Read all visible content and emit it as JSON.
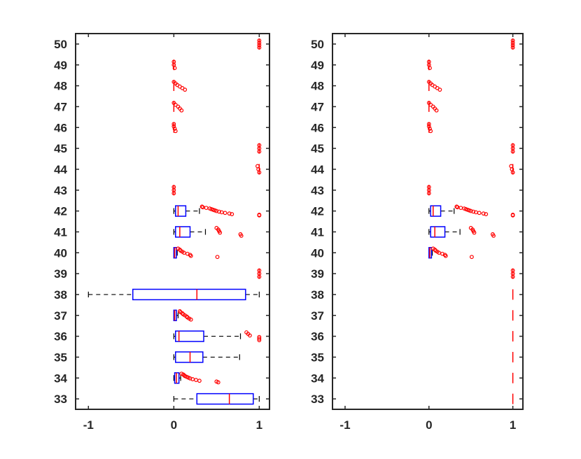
{
  "chart_data": [
    {
      "type": "boxplot",
      "orientation": "horizontal",
      "title": "",
      "xlabel": "",
      "ylabel": "",
      "xlim": [
        -1.15,
        1.12
      ],
      "ylim": [
        32.5,
        50.5
      ],
      "xticks": [
        -1,
        0,
        1
      ],
      "xtick_labels": [
        "-1",
        "0",
        "1"
      ],
      "yticks": [
        33,
        34,
        35,
        36,
        37,
        38,
        39,
        40,
        41,
        42,
        43,
        44,
        45,
        46,
        47,
        48,
        49,
        50
      ],
      "ytick_labels": [
        "33",
        "34",
        "35",
        "36",
        "37",
        "38",
        "39",
        "40",
        "41",
        "42",
        "43",
        "44",
        "45",
        "46",
        "47",
        "48",
        "49",
        "50"
      ],
      "grid": false,
      "colors": {
        "box": "#0000ff",
        "median": "#ff0000",
        "whisker": "#000000",
        "outlier": "#ff0000"
      },
      "boxes": [
        {
          "category": "33",
          "whisker_low": 0.0,
          "q1": 0.27,
          "median": 0.65,
          "q3": 0.93,
          "whisker_high": 1.0,
          "outliers": []
        },
        {
          "category": "34",
          "whisker_low": 0.0,
          "q1": 0.01,
          "median": 0.03,
          "q3": 0.06,
          "whisker_high": 0.08,
          "outliers": [
            0.09,
            0.11,
            0.12,
            0.13,
            0.15,
            0.17,
            0.19,
            0.22,
            0.26,
            0.3,
            0.5,
            0.52
          ]
        },
        {
          "category": "35",
          "whisker_low": 0.0,
          "q1": 0.02,
          "median": 0.19,
          "q3": 0.34,
          "whisker_high": 0.77,
          "outliers": []
        },
        {
          "category": "36",
          "whisker_low": 0.0,
          "q1": 0.02,
          "median": 0.06,
          "q3": 0.35,
          "whisker_high": 0.78,
          "outliers": [
            0.85,
            0.87,
            0.89,
            1.0,
            1.0,
            1.0
          ]
        },
        {
          "category": "37",
          "whisker_low": 0.0,
          "q1": 0.0,
          "median": 0.01,
          "q3": 0.03,
          "whisker_high": 0.05,
          "outliers": [
            0.07,
            0.08,
            0.1,
            0.11,
            0.13,
            0.15,
            0.16,
            0.18,
            0.2
          ]
        },
        {
          "category": "38",
          "whisker_low": -1.0,
          "q1": -0.48,
          "median": 0.27,
          "q3": 0.84,
          "whisker_high": 1.0,
          "outliers": []
        },
        {
          "category": "39",
          "whisker_low": 1.0,
          "q1": 1.0,
          "median": 1.0,
          "q3": 1.0,
          "whisker_high": 1.0,
          "outliers": [
            1.0,
            1.0,
            1.0
          ]
        },
        {
          "category": "40",
          "whisker_low": 0.0,
          "q1": 0.0,
          "median": 0.01,
          "q3": 0.03,
          "whisker_high": 0.04,
          "outliers": [
            0.05,
            0.07,
            0.08,
            0.1,
            0.12,
            0.16,
            0.19,
            0.2,
            0.51
          ]
        },
        {
          "category": "41",
          "whisker_low": 0.0,
          "q1": 0.02,
          "median": 0.07,
          "q3": 0.19,
          "whisker_high": 0.37,
          "outliers": [
            0.5,
            0.52,
            0.53,
            0.54,
            0.78,
            0.79
          ]
        },
        {
          "category": "42",
          "whisker_low": 0.0,
          "q1": 0.02,
          "median": 0.05,
          "q3": 0.14,
          "whisker_high": 0.3,
          "outliers": [
            0.33,
            0.34,
            0.38,
            0.42,
            0.44,
            0.46,
            0.48,
            0.5,
            0.53,
            0.56,
            0.6,
            0.65,
            0.68,
            1.0,
            1.0
          ]
        },
        {
          "category": "43",
          "whisker_low": 0.0,
          "q1": 0.0,
          "median": 0.0,
          "q3": 0.0,
          "whisker_high": 0.0,
          "outliers": [
            0.0,
            0.0,
            0.0
          ]
        },
        {
          "category": "44",
          "whisker_low": 1.0,
          "q1": 1.0,
          "median": 1.0,
          "q3": 1.0,
          "whisker_high": 1.0,
          "outliers": [
            0.98,
            0.99,
            1.0
          ]
        },
        {
          "category": "45",
          "whisker_low": 1.0,
          "q1": 1.0,
          "median": 1.0,
          "q3": 1.0,
          "whisker_high": 1.0,
          "outliers": [
            1.0,
            1.0,
            1.0
          ]
        },
        {
          "category": "46",
          "whisker_low": 0.0,
          "q1": 0.0,
          "median": 0.0,
          "q3": 0.0,
          "whisker_high": 0.0,
          "outliers": [
            0.0,
            0.0,
            0.01,
            0.02
          ]
        },
        {
          "category": "47",
          "whisker_low": 0.0,
          "q1": 0.0,
          "median": 0.0,
          "q3": 0.0,
          "whisker_high": 0.0,
          "outliers": [
            0.0,
            0.02,
            0.05,
            0.07,
            0.09
          ]
        },
        {
          "category": "48",
          "whisker_low": 0.0,
          "q1": 0.0,
          "median": 0.0,
          "q3": 0.0,
          "whisker_high": 0.0,
          "outliers": [
            0.0,
            0.02,
            0.04,
            0.07,
            0.1,
            0.13
          ]
        },
        {
          "category": "49",
          "whisker_low": 0.0,
          "q1": 0.0,
          "median": 0.0,
          "q3": 0.0,
          "whisker_high": 0.0,
          "outliers": [
            0.0,
            0.0,
            0.01
          ]
        },
        {
          "category": "50",
          "whisker_low": 1.0,
          "q1": 1.0,
          "median": 1.0,
          "q3": 1.0,
          "whisker_high": 1.0,
          "outliers": [
            1.0,
            1.0,
            1.0,
            1.0
          ]
        }
      ]
    },
    {
      "type": "boxplot",
      "orientation": "horizontal",
      "title": "",
      "xlabel": "",
      "ylabel": "",
      "xlim": [
        -1.15,
        1.12
      ],
      "ylim": [
        32.5,
        50.5
      ],
      "xticks": [
        -1,
        0,
        1
      ],
      "xtick_labels": [
        "-1",
        "0",
        "1"
      ],
      "yticks": [
        33,
        34,
        35,
        36,
        37,
        38,
        39,
        40,
        41,
        42,
        43,
        44,
        45,
        46,
        47,
        48,
        49,
        50
      ],
      "ytick_labels": [
        "33",
        "34",
        "35",
        "36",
        "37",
        "38",
        "39",
        "40",
        "41",
        "42",
        "43",
        "44",
        "45",
        "46",
        "47",
        "48",
        "49",
        "50"
      ],
      "grid": false,
      "colors": {
        "box": "#0000ff",
        "median": "#ff0000",
        "whisker": "#000000",
        "outlier": "#ff0000"
      },
      "boxes": [
        {
          "category": "33",
          "whisker_low": 1.0,
          "q1": 1.0,
          "median": 1.0,
          "q3": 1.0,
          "whisker_high": 1.0,
          "outliers": []
        },
        {
          "category": "34",
          "whisker_low": 1.0,
          "q1": 1.0,
          "median": 1.0,
          "q3": 1.0,
          "whisker_high": 1.0,
          "outliers": []
        },
        {
          "category": "35",
          "whisker_low": 1.0,
          "q1": 1.0,
          "median": 1.0,
          "q3": 1.0,
          "whisker_high": 1.0,
          "outliers": []
        },
        {
          "category": "36",
          "whisker_low": 1.0,
          "q1": 1.0,
          "median": 1.0,
          "q3": 1.0,
          "whisker_high": 1.0,
          "outliers": []
        },
        {
          "category": "37",
          "whisker_low": 1.0,
          "q1": 1.0,
          "median": 1.0,
          "q3": 1.0,
          "whisker_high": 1.0,
          "outliers": []
        },
        {
          "category": "38",
          "whisker_low": 1.0,
          "q1": 1.0,
          "median": 1.0,
          "q3": 1.0,
          "whisker_high": 1.0,
          "outliers": []
        },
        {
          "category": "39",
          "whisker_low": 1.0,
          "q1": 1.0,
          "median": 1.0,
          "q3": 1.0,
          "whisker_high": 1.0,
          "outliers": [
            1.0,
            1.0,
            1.0
          ]
        },
        {
          "category": "40",
          "whisker_low": 0.0,
          "q1": 0.0,
          "median": 0.01,
          "q3": 0.03,
          "whisker_high": 0.04,
          "outliers": [
            0.05,
            0.07,
            0.08,
            0.1,
            0.12,
            0.16,
            0.19,
            0.2,
            0.51
          ]
        },
        {
          "category": "41",
          "whisker_low": 0.0,
          "q1": 0.02,
          "median": 0.07,
          "q3": 0.19,
          "whisker_high": 0.37,
          "outliers": [
            0.5,
            0.52,
            0.53,
            0.54,
            0.76,
            0.77
          ]
        },
        {
          "category": "42",
          "whisker_low": 0.0,
          "q1": 0.02,
          "median": 0.05,
          "q3": 0.14,
          "whisker_high": 0.3,
          "outliers": [
            0.33,
            0.34,
            0.38,
            0.42,
            0.44,
            0.46,
            0.48,
            0.5,
            0.53,
            0.56,
            0.6,
            0.65,
            0.68,
            1.0,
            1.0
          ]
        },
        {
          "category": "43",
          "whisker_low": 0.0,
          "q1": 0.0,
          "median": 0.0,
          "q3": 0.0,
          "whisker_high": 0.0,
          "outliers": [
            0.0,
            0.0,
            0.0
          ]
        },
        {
          "category": "44",
          "whisker_low": 1.0,
          "q1": 1.0,
          "median": 1.0,
          "q3": 1.0,
          "whisker_high": 1.0,
          "outliers": [
            0.98,
            0.99,
            1.0
          ]
        },
        {
          "category": "45",
          "whisker_low": 1.0,
          "q1": 1.0,
          "median": 1.0,
          "q3": 1.0,
          "whisker_high": 1.0,
          "outliers": [
            1.0,
            1.0,
            1.0
          ]
        },
        {
          "category": "46",
          "whisker_low": 0.0,
          "q1": 0.0,
          "median": 0.0,
          "q3": 0.0,
          "whisker_high": 0.0,
          "outliers": [
            0.0,
            0.0,
            0.01,
            0.02
          ]
        },
        {
          "category": "47",
          "whisker_low": 0.0,
          "q1": 0.0,
          "median": 0.0,
          "q3": 0.0,
          "whisker_high": 0.0,
          "outliers": [
            0.0,
            0.02,
            0.05,
            0.07,
            0.09
          ]
        },
        {
          "category": "48",
          "whisker_low": 0.0,
          "q1": 0.0,
          "median": 0.0,
          "q3": 0.0,
          "whisker_high": 0.0,
          "outliers": [
            0.0,
            0.02,
            0.04,
            0.07,
            0.1,
            0.13
          ]
        },
        {
          "category": "49",
          "whisker_low": 0.0,
          "q1": 0.0,
          "median": 0.0,
          "q3": 0.0,
          "whisker_high": 0.0,
          "outliers": [
            0.0,
            0.0,
            0.01
          ]
        },
        {
          "category": "50",
          "whisker_low": 1.0,
          "q1": 1.0,
          "median": 1.0,
          "q3": 1.0,
          "whisker_high": 1.0,
          "outliers": [
            1.0,
            1.0,
            1.0,
            1.0
          ]
        }
      ]
    }
  ]
}
